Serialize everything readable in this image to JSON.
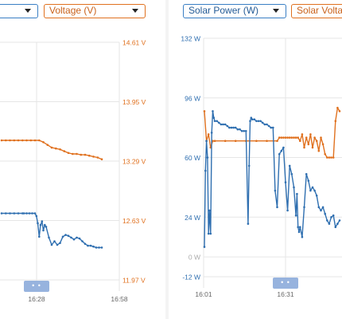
{
  "colors": {
    "power": "#2f6fb0",
    "voltage": "#e0711f",
    "grid": "#e6e6e6",
    "axis": "#8a8a8a"
  },
  "left": {
    "dropdown_partial": "",
    "dropdown_voltage": "Voltage (V)",
    "nav_handle": "• •"
  },
  "right": {
    "dropdown_power": "Solar Power (W)",
    "dropdown_voltage": "Solar Volta",
    "nav_handle": "• •"
  },
  "chart_data": [
    {
      "type": "line",
      "title": "",
      "x_ticks": [
        "16:28",
        "16:58"
      ],
      "y_right_ticks": [
        "14.61 V",
        "13.95 V",
        "13.29 V",
        "12.63 V",
        "11.97 V"
      ],
      "y_right_range": [
        11.97,
        14.61
      ],
      "grid": true,
      "series": [
        {
          "name": "Voltage (V)",
          "axis": "right",
          "x": [
            0,
            3,
            6,
            9,
            12,
            15,
            18,
            21,
            24,
            27,
            30,
            33,
            36,
            39,
            42,
            45,
            48,
            51,
            54,
            57,
            60,
            63,
            66,
            69,
            72
          ],
          "values": [
            13.52,
            13.52,
            13.52,
            13.52,
            13.52,
            13.52,
            13.52,
            13.52,
            13.52,
            13.52,
            13.5,
            13.47,
            13.44,
            13.43,
            13.42,
            13.4,
            13.38,
            13.37,
            13.37,
            13.36,
            13.36,
            13.35,
            13.34,
            13.33,
            13.31
          ]
        },
        {
          "name": "",
          "axis": "right",
          "x": [
            0,
            3,
            6,
            9,
            12,
            15,
            16,
            18,
            20,
            22,
            24,
            25,
            26,
            27,
            28,
            29,
            30,
            31,
            32,
            34,
            36,
            38,
            40,
            42,
            44,
            46,
            48,
            50,
            52,
            54,
            56,
            58,
            60,
            62,
            64,
            66,
            68,
            70,
            72
          ],
          "values": [
            12.71,
            12.71,
            12.71,
            12.71,
            12.71,
            12.71,
            12.71,
            12.71,
            12.71,
            12.71,
            12.71,
            12.68,
            12.6,
            12.45,
            12.58,
            12.62,
            12.52,
            12.58,
            12.56,
            12.44,
            12.36,
            12.4,
            12.36,
            12.38,
            12.45,
            12.47,
            12.46,
            12.44,
            12.42,
            12.44,
            12.43,
            12.4,
            12.37,
            12.35,
            12.35,
            12.34,
            12.33,
            12.33,
            12.33
          ]
        }
      ]
    },
    {
      "type": "line",
      "title": "",
      "x_ticks": [
        "16:01",
        "16:31"
      ],
      "y_left_ticks": [
        "132 W",
        "96 W",
        "60 W",
        "24 W",
        "0 W",
        "-12 W"
      ],
      "y_left_range": [
        -12,
        132
      ],
      "grid": true,
      "series": [
        {
          "name": "Solar Power (W)",
          "axis": "left",
          "x": [
            0,
            1,
            2,
            3,
            4,
            5,
            6,
            7,
            8,
            9,
            10,
            12,
            14,
            16,
            18,
            20,
            22,
            24,
            26,
            28,
            30,
            32,
            34,
            36,
            38,
            40,
            42,
            43,
            44,
            45,
            46,
            48,
            50,
            52,
            54,
            56,
            58,
            60,
            62,
            64,
            66,
            68,
            70,
            72,
            74,
            76,
            78,
            80,
            82,
            84,
            86,
            88,
            89,
            90,
            91,
            92,
            94,
            96,
            98,
            100,
            102,
            104,
            106,
            108,
            110,
            112,
            114,
            116,
            118,
            120,
            122,
            124,
            126,
            128,
            130
          ],
          "values": [
            6,
            52,
            70,
            60,
            14,
            28,
            14,
            75,
            88,
            84,
            82,
            82,
            81,
            80,
            80,
            80,
            79,
            78,
            78,
            78,
            78,
            77,
            77,
            76,
            76,
            76,
            20,
            55,
            82,
            84,
            83,
            83,
            82,
            82,
            82,
            81,
            80,
            80,
            79,
            78,
            78,
            40,
            30,
            62,
            64,
            66,
            45,
            28,
            55,
            50,
            42,
            25,
            38,
            18,
            15,
            18,
            12,
            30,
            50,
            46,
            40,
            42,
            40,
            37,
            30,
            28,
            30,
            26,
            22,
            20,
            24,
            25,
            18,
            20,
            22
          ]
        },
        {
          "name": "Solar Volta",
          "axis": "right",
          "x": [
            0,
            2,
            4,
            6,
            8,
            10,
            20,
            30,
            40,
            50,
            60,
            70,
            72,
            74,
            76,
            78,
            80,
            82,
            84,
            86,
            88,
            90,
            92,
            94,
            96,
            98,
            100,
            102,
            104,
            106,
            108,
            110,
            112,
            114,
            116,
            118,
            120,
            122,
            124,
            126,
            128,
            130
          ],
          "values": [
            88,
            70,
            74,
            66,
            70,
            70,
            70,
            70,
            70,
            70,
            70,
            70,
            72,
            72,
            72,
            72,
            72,
            72,
            72,
            72,
            72,
            72,
            70,
            74,
            66,
            72,
            68,
            74,
            66,
            72,
            70,
            64,
            72,
            68,
            62,
            60,
            60,
            60,
            60,
            82,
            90,
            88
          ]
        }
      ]
    }
  ]
}
